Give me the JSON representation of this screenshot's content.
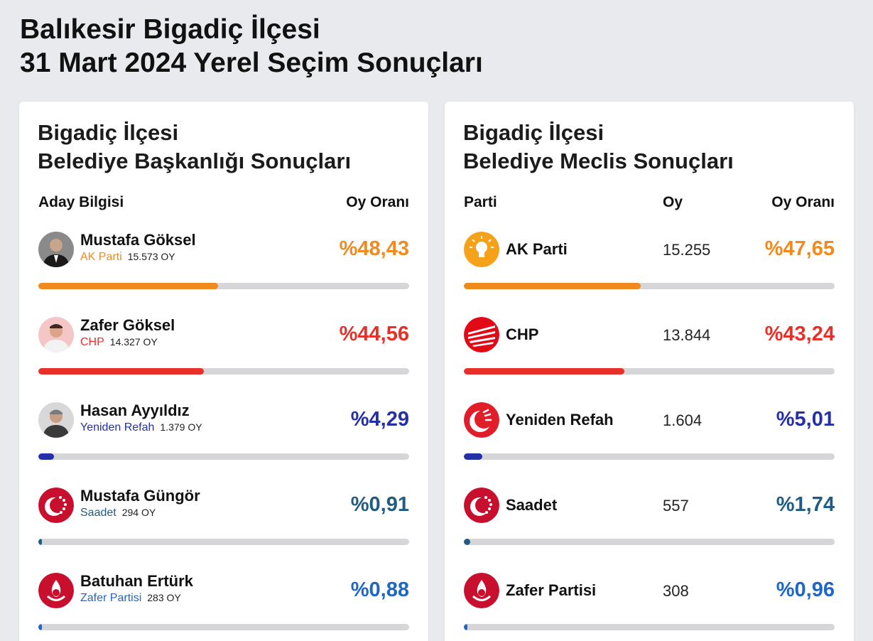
{
  "page": {
    "title_line1": "Balıkesir Bigadiç İlçesi",
    "title_line2": "31 Mart 2024 Yerel Seçim Sonuçları"
  },
  "mayor": {
    "title_line1": "Bigadiç İlçesi",
    "title_line2": "Belediye Başkanlığı Sonuçları",
    "col_candidate": "Aday Bilgisi",
    "col_rate": "Oy Oranı",
    "rows": [
      {
        "name": "Mustafa Göksel",
        "party": "AK Parti",
        "votes": "15.573 OY",
        "pct": "%48,43",
        "share": 48.43,
        "color": "#f08a1c",
        "icon": "candidate-photo"
      },
      {
        "name": "Zafer Göksel",
        "party": "CHP",
        "votes": "14.327 OY",
        "pct": "%44,56",
        "share": 44.56,
        "color": "#e8302a",
        "icon": "candidate-photo"
      },
      {
        "name": "Hasan Ayyıldız",
        "party": "Yeniden Refah",
        "votes": "1.379 OY",
        "pct": "%4,29",
        "share": 4.29,
        "color": "#2430a8",
        "icon": "candidate-photo"
      },
      {
        "name": "Mustafa Güngör",
        "party": "Saadet",
        "votes": "294 OY",
        "pct": "%0,91",
        "share": 0.91,
        "color": "#205c84",
        "icon": "saadet-logo-icon"
      },
      {
        "name": "Batuhan Ertürk",
        "party": "Zafer Partisi",
        "votes": "283 OY",
        "pct": "%0,88",
        "share": 0.88,
        "color": "#1f66c7",
        "icon": "zafer-logo-icon"
      }
    ]
  },
  "council": {
    "title_line1": "Bigadiç İlçesi",
    "title_line2": "Belediye Meclis Sonuçları",
    "col_party": "Parti",
    "col_votes": "Oy",
    "col_rate": "Oy Oranı",
    "rows": [
      {
        "party": "AK Parti",
        "votes": "15.255",
        "pct": "%47,65",
        "share": 47.65,
        "color": "#f08a1c",
        "icon": "akparti-logo-icon"
      },
      {
        "party": "CHP",
        "votes": "13.844",
        "pct": "%43,24",
        "share": 43.24,
        "color": "#e8302a",
        "icon": "chp-logo-icon"
      },
      {
        "party": "Yeniden Refah",
        "votes": "1.604",
        "pct": "%5,01",
        "share": 5.01,
        "color": "#2430a8",
        "icon": "yenidenrefah-logo-icon"
      },
      {
        "party": "Saadet",
        "votes": "557",
        "pct": "%1,74",
        "share": 1.74,
        "color": "#205c84",
        "icon": "saadet-logo-icon"
      },
      {
        "party": "Zafer Partisi",
        "votes": "308",
        "pct": "%0,96",
        "share": 0.96,
        "color": "#1f66c7",
        "icon": "zafer-logo-icon"
      }
    ]
  }
}
